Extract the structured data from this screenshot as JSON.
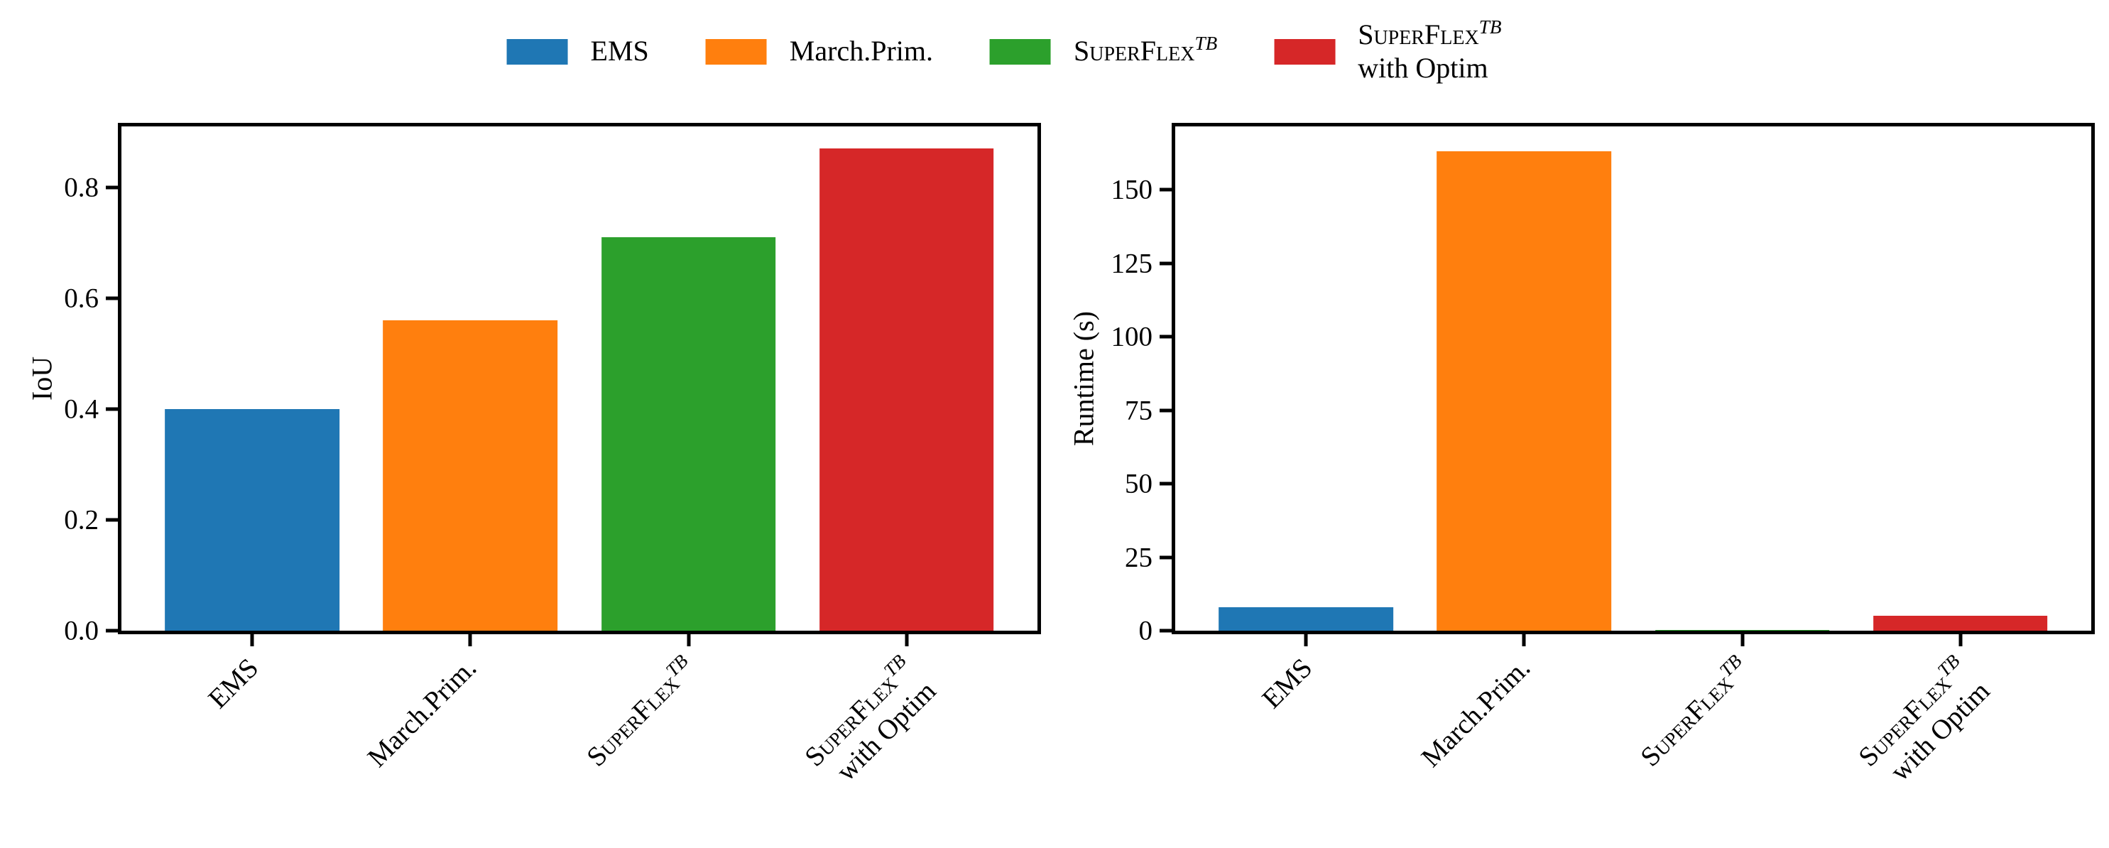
{
  "figure": {
    "background": "#ffffff"
  },
  "legend": {
    "position": "top-center",
    "entries": [
      {
        "label_lines": [
          "EMS"
        ],
        "color": "#1f77b4"
      },
      {
        "label_lines": [
          "March.Prim."
        ],
        "color": "#ff7f0e"
      },
      {
        "label_lines": [
          "SuperFlex^{TB}"
        ],
        "color": "#2ca02c"
      },
      {
        "label_lines": [
          "SuperFlex^{TB}",
          "with Optim"
        ],
        "color": "#d62728"
      }
    ]
  },
  "chart_data": [
    {
      "type": "bar",
      "title": "",
      "xlabel": "",
      "ylabel": "IoU",
      "categories": [
        "EMS",
        "March.Prim.",
        "SuperFlex^{TB}",
        "SuperFlex^{TB}\nwith Optim"
      ],
      "values": [
        0.4,
        0.56,
        0.71,
        0.87
      ],
      "bar_colors": [
        "#1f77b4",
        "#ff7f0e",
        "#2ca02c",
        "#d62728"
      ],
      "ylim": [
        0,
        0.91
      ],
      "yticks": [
        0.0,
        0.2,
        0.4,
        0.6,
        0.8
      ],
      "ytick_labels": [
        "0.0",
        "0.2",
        "0.4",
        "0.6",
        "0.8"
      ],
      "xtick_rotation_deg": 45,
      "grid": false,
      "bar_width_fraction": 0.8
    },
    {
      "type": "bar",
      "title": "",
      "xlabel": "",
      "ylabel": "Runtime (s)",
      "categories": [
        "EMS",
        "March.Prim.",
        "SuperFlex^{TB}",
        "SuperFlex^{TB}\nwith Optim"
      ],
      "values": [
        8,
        163,
        0.2,
        5
      ],
      "bar_colors": [
        "#1f77b4",
        "#ff7f0e",
        "#2ca02c",
        "#d62728"
      ],
      "ylim": [
        0,
        171.5
      ],
      "yticks": [
        0,
        25,
        50,
        75,
        100,
        125,
        150
      ],
      "ytick_labels": [
        "0",
        "25",
        "50",
        "75",
        "100",
        "125",
        "150"
      ],
      "xtick_rotation_deg": 45,
      "grid": false,
      "bar_width_fraction": 0.8
    }
  ]
}
